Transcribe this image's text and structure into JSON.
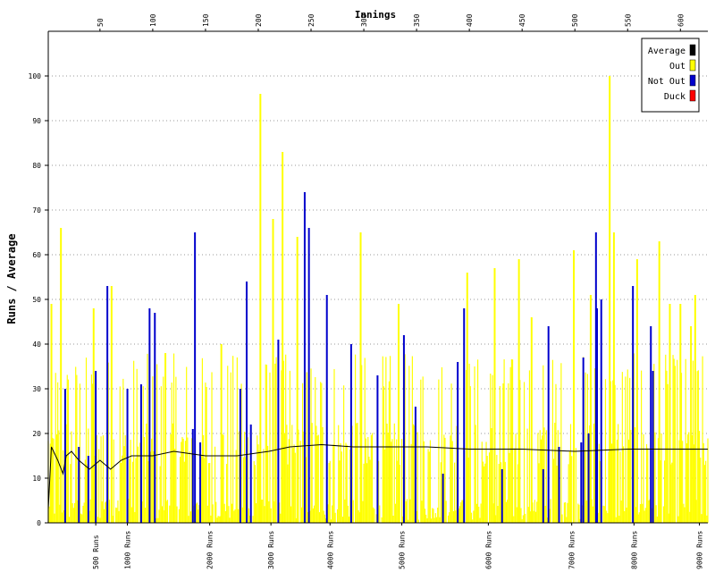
{
  "chart_data": {
    "type": "bar",
    "title": "",
    "xlabel_top": "Innings",
    "ylabel": "Runs / Average",
    "innings_ticks": [
      "50",
      "100",
      "150",
      "200",
      "250",
      "300",
      "350",
      "400",
      "450",
      "500",
      "550",
      "600"
    ],
    "xlim": [
      1,
      626
    ],
    "y_ticks": [
      "0",
      "10",
      "20",
      "30",
      "40",
      "50",
      "60",
      "70",
      "80",
      "90",
      "100"
    ],
    "ylim": [
      0,
      110
    ],
    "grid": "horizontal dotted",
    "legend_position": "top-right",
    "legend": [
      {
        "label": "Average",
        "color": "#000000"
      },
      {
        "label": "Out",
        "color": "#ffff00"
      },
      {
        "label": "Not Out",
        "color": "#0000cc"
      },
      {
        "label": "Duck",
        "color": "#ff0000"
      }
    ],
    "run_milestones": [
      {
        "label": "500 Runs",
        "innings": 46
      },
      {
        "label": "1000 Runs",
        "innings": 76
      },
      {
        "label": "2000 Runs",
        "innings": 154
      },
      {
        "label": "3000 Runs",
        "innings": 212
      },
      {
        "label": "4000 Runs",
        "innings": 268
      },
      {
        "label": "5000 Runs",
        "innings": 336
      },
      {
        "label": "6000 Runs",
        "innings": 418
      },
      {
        "label": "7000 Runs",
        "innings": 497
      },
      {
        "label": "8000 Runs",
        "innings": 556
      },
      {
        "label": "9000 Runs",
        "innings": 618
      }
    ],
    "highlight_bars": [
      {
        "innings": 4,
        "runs": 49,
        "status": "out"
      },
      {
        "innings": 13,
        "runs": 66,
        "status": "out"
      },
      {
        "innings": 17,
        "runs": 30,
        "status": "not_out"
      },
      {
        "innings": 30,
        "runs": 17,
        "status": "not_out"
      },
      {
        "innings": 39,
        "runs": 15,
        "status": "not_out"
      },
      {
        "innings": 44,
        "runs": 48,
        "status": "out"
      },
      {
        "innings": 46,
        "runs": 34,
        "status": "not_out"
      },
      {
        "innings": 57,
        "runs": 53,
        "status": "not_out"
      },
      {
        "innings": 61,
        "runs": 53,
        "status": "out"
      },
      {
        "innings": 76,
        "runs": 30,
        "status": "not_out"
      },
      {
        "innings": 89,
        "runs": 31,
        "status": "not_out"
      },
      {
        "innings": 97,
        "runs": 48,
        "status": "not_out"
      },
      {
        "innings": 102,
        "runs": 47,
        "status": "not_out"
      },
      {
        "innings": 112,
        "runs": 38,
        "status": "out"
      },
      {
        "innings": 138,
        "runs": 21,
        "status": "not_out"
      },
      {
        "innings": 140,
        "runs": 65,
        "status": "not_out"
      },
      {
        "innings": 145,
        "runs": 18,
        "status": "not_out"
      },
      {
        "innings": 165,
        "runs": 40,
        "status": "out"
      },
      {
        "innings": 183,
        "runs": 30,
        "status": "not_out"
      },
      {
        "innings": 189,
        "runs": 54,
        "status": "not_out"
      },
      {
        "innings": 193,
        "runs": 22,
        "status": "not_out"
      },
      {
        "innings": 202,
        "runs": 96,
        "status": "out"
      },
      {
        "innings": 214,
        "runs": 68,
        "status": "out"
      },
      {
        "innings": 219,
        "runs": 41,
        "status": "not_out"
      },
      {
        "innings": 223,
        "runs": 83,
        "status": "out"
      },
      {
        "innings": 237,
        "runs": 64,
        "status": "out"
      },
      {
        "innings": 244,
        "runs": 74,
        "status": "not_out"
      },
      {
        "innings": 248,
        "runs": 66,
        "status": "not_out"
      },
      {
        "innings": 265,
        "runs": 51,
        "status": "not_out"
      },
      {
        "innings": 288,
        "runs": 40,
        "status": "not_out"
      },
      {
        "innings": 297,
        "runs": 65,
        "status": "out"
      },
      {
        "innings": 313,
        "runs": 33,
        "status": "not_out"
      },
      {
        "innings": 333,
        "runs": 49,
        "status": "out"
      },
      {
        "innings": 338,
        "runs": 42,
        "status": "not_out"
      },
      {
        "innings": 349,
        "runs": 26,
        "status": "not_out"
      },
      {
        "innings": 375,
        "runs": 11,
        "status": "not_out"
      },
      {
        "innings": 389,
        "runs": 36,
        "status": "not_out"
      },
      {
        "innings": 395,
        "runs": 48,
        "status": "not_out"
      },
      {
        "innings": 398,
        "runs": 56,
        "status": "out"
      },
      {
        "innings": 424,
        "runs": 57,
        "status": "out"
      },
      {
        "innings": 431,
        "runs": 12,
        "status": "not_out"
      },
      {
        "innings": 447,
        "runs": 59,
        "status": "out"
      },
      {
        "innings": 459,
        "runs": 46,
        "status": "out"
      },
      {
        "innings": 470,
        "runs": 12,
        "status": "not_out"
      },
      {
        "innings": 475,
        "runs": 44,
        "status": "not_out"
      },
      {
        "innings": 485,
        "runs": 17,
        "status": "not_out"
      },
      {
        "innings": 499,
        "runs": 61,
        "status": "out"
      },
      {
        "innings": 506,
        "runs": 18,
        "status": "not_out"
      },
      {
        "innings": 508,
        "runs": 37,
        "status": "not_out"
      },
      {
        "innings": 513,
        "runs": 20,
        "status": "not_out"
      },
      {
        "innings": 515,
        "runs": 51,
        "status": "out"
      },
      {
        "innings": 520,
        "runs": 65,
        "status": "not_out"
      },
      {
        "innings": 521,
        "runs": 48,
        "status": "not_out"
      },
      {
        "innings": 525,
        "runs": 50,
        "status": "not_out"
      },
      {
        "innings": 533,
        "runs": 100,
        "status": "out"
      },
      {
        "innings": 537,
        "runs": 65,
        "status": "out"
      },
      {
        "innings": 555,
        "runs": 53,
        "status": "not_out"
      },
      {
        "innings": 559,
        "runs": 59,
        "status": "out"
      },
      {
        "innings": 572,
        "runs": 44,
        "status": "not_out"
      },
      {
        "innings": 574,
        "runs": 34,
        "status": "not_out"
      },
      {
        "innings": 580,
        "runs": 63,
        "status": "out"
      },
      {
        "innings": 590,
        "runs": 49,
        "status": "out"
      },
      {
        "innings": 600,
        "runs": 49,
        "status": "out"
      },
      {
        "innings": 610,
        "runs": 44,
        "status": "out"
      },
      {
        "innings": 614,
        "runs": 51,
        "status": "out"
      }
    ],
    "average_series": [
      {
        "innings": 1,
        "avg": 3
      },
      {
        "innings": 4,
        "avg": 17
      },
      {
        "innings": 10,
        "avg": 14
      },
      {
        "innings": 15,
        "avg": 11
      },
      {
        "innings": 18,
        "avg": 15
      },
      {
        "innings": 23,
        "avg": 16
      },
      {
        "innings": 30,
        "avg": 14
      },
      {
        "innings": 40,
        "avg": 12
      },
      {
        "innings": 50,
        "avg": 14
      },
      {
        "innings": 60,
        "avg": 12
      },
      {
        "innings": 70,
        "avg": 14
      },
      {
        "innings": 80,
        "avg": 15
      },
      {
        "innings": 100,
        "avg": 15
      },
      {
        "innings": 120,
        "avg": 16
      },
      {
        "innings": 150,
        "avg": 15
      },
      {
        "innings": 180,
        "avg": 15
      },
      {
        "innings": 210,
        "avg": 16
      },
      {
        "innings": 230,
        "avg": 17
      },
      {
        "innings": 260,
        "avg": 17.5
      },
      {
        "innings": 290,
        "avg": 17
      },
      {
        "innings": 320,
        "avg": 17
      },
      {
        "innings": 360,
        "avg": 17
      },
      {
        "innings": 400,
        "avg": 16.5
      },
      {
        "innings": 450,
        "avg": 16.5
      },
      {
        "innings": 500,
        "avg": 16
      },
      {
        "innings": 550,
        "avg": 16.5
      },
      {
        "innings": 600,
        "avg": 16.5
      },
      {
        "innings": 626,
        "avg": 16.5
      }
    ]
  }
}
